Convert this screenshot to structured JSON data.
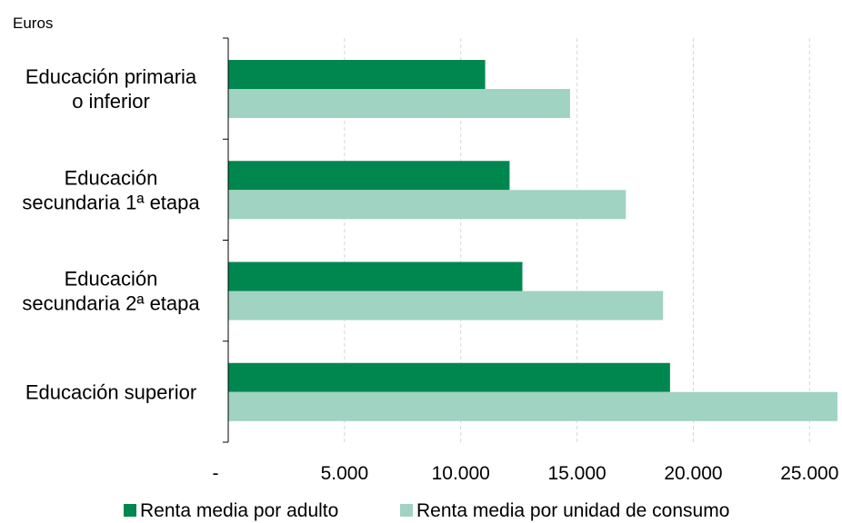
{
  "chart_data": {
    "type": "bar",
    "orientation": "horizontal",
    "unit_label": "Euros",
    "categories": [
      [
        "Educación primaria",
        "o inferior"
      ],
      [
        "Educación",
        "secundaria 1ª etapa"
      ],
      [
        "Educación",
        "secundaria 2ª etapa"
      ],
      [
        "Educación superior"
      ]
    ],
    "series": [
      {
        "name": "Renta media por adulto",
        "color": "#00874F",
        "values": [
          11050,
          12100,
          12650,
          19000
        ]
      },
      {
        "name": "Renta media por unidad de consumo",
        "color": "#A0D3C1",
        "values": [
          14700,
          17100,
          18700,
          26200
        ]
      }
    ],
    "xlim": [
      0,
      26200
    ],
    "xticks": [
      0,
      5000,
      10000,
      15000,
      20000,
      25000
    ],
    "xtick_labels": [
      "-",
      "5.000",
      "10.000",
      "15.000",
      "20.000",
      "25.000"
    ],
    "grid": "vertical dashed",
    "legend_position": "bottom"
  }
}
